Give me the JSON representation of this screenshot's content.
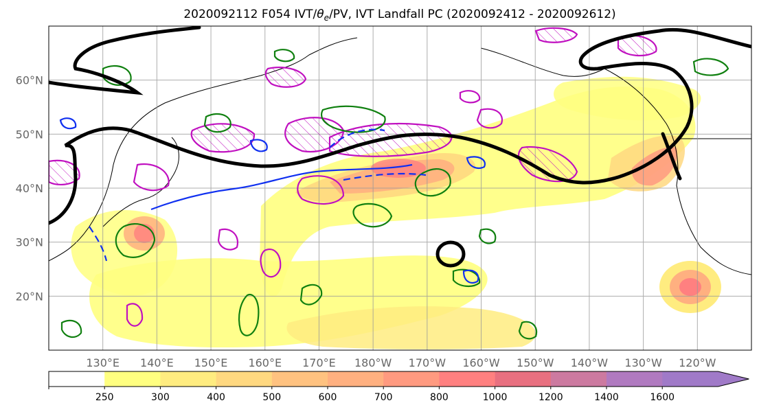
{
  "chart_data": {
    "type": "heatmap",
    "title": "2020092112 F054 IVT/θe/PV, IVT Landfall PC (2020092412 - 2020092612)",
    "title_parts": {
      "before": "2020092112 F054 IVT/",
      "theta": "θ",
      "sub": "e",
      "after": "/PV, IVT Landfall PC (2020092412 - 2020092612)"
    },
    "map_extent": {
      "lon": [
        120,
        250
      ],
      "lat": [
        10,
        70
      ]
    },
    "x_ticks": [
      {
        "lon": 130,
        "label": "130°E"
      },
      {
        "lon": 140,
        "label": "140°E"
      },
      {
        "lon": 150,
        "label": "150°E"
      },
      {
        "lon": 160,
        "label": "160°E"
      },
      {
        "lon": 170,
        "label": "170°E"
      },
      {
        "lon": 180,
        "label": "180°W"
      },
      {
        "lon": 190,
        "label": "170°W"
      },
      {
        "lon": 200,
        "label": "160°W"
      },
      {
        "lon": 210,
        "label": "150°W"
      },
      {
        "lon": 220,
        "label": "140°W"
      },
      {
        "lon": 230,
        "label": "130°W"
      },
      {
        "lon": 240,
        "label": "120°W"
      }
    ],
    "y_ticks": [
      {
        "lat": 20,
        "label": "20°N"
      },
      {
        "lat": 30,
        "label": "30°N"
      },
      {
        "lat": 40,
        "label": "40°N"
      },
      {
        "lat": 50,
        "label": "50°N"
      },
      {
        "lat": 60,
        "label": "60°N"
      }
    ],
    "grid": true,
    "colorbar": {
      "levels": [
        250,
        300,
        400,
        500,
        600,
        700,
        800,
        1000,
        1200,
        1400,
        1600
      ],
      "colors": [
        "#ffffff",
        "#ffff80",
        "#ffec80",
        "#ffd880",
        "#ffc280",
        "#ffb080",
        "#ff9a80",
        "#ff8080",
        "#e87080",
        "#cc7aa0",
        "#b07ac0",
        "#a07ac8"
      ],
      "extend": "max"
    },
    "ivt_maxima": [
      {
        "lon": 176,
        "lat": 41,
        "value": 850
      },
      {
        "lon": 190,
        "lat": 43,
        "value": 950
      },
      {
        "lon": 232,
        "lat": 44,
        "value": 1050
      },
      {
        "lon": 137,
        "lat": 32,
        "value": 900
      },
      {
        "lon": 241,
        "lat": 21,
        "value": 900
      }
    ],
    "contours": {
      "black": "steering contour",
      "magenta": "PV",
      "green": "θe",
      "blue": "θe dashed/solid"
    },
    "colors": {
      "black_line": "#000000",
      "magenta": "#c010c0",
      "green": "#108010",
      "blue": "#1030f0",
      "grid": "#999999"
    }
  }
}
